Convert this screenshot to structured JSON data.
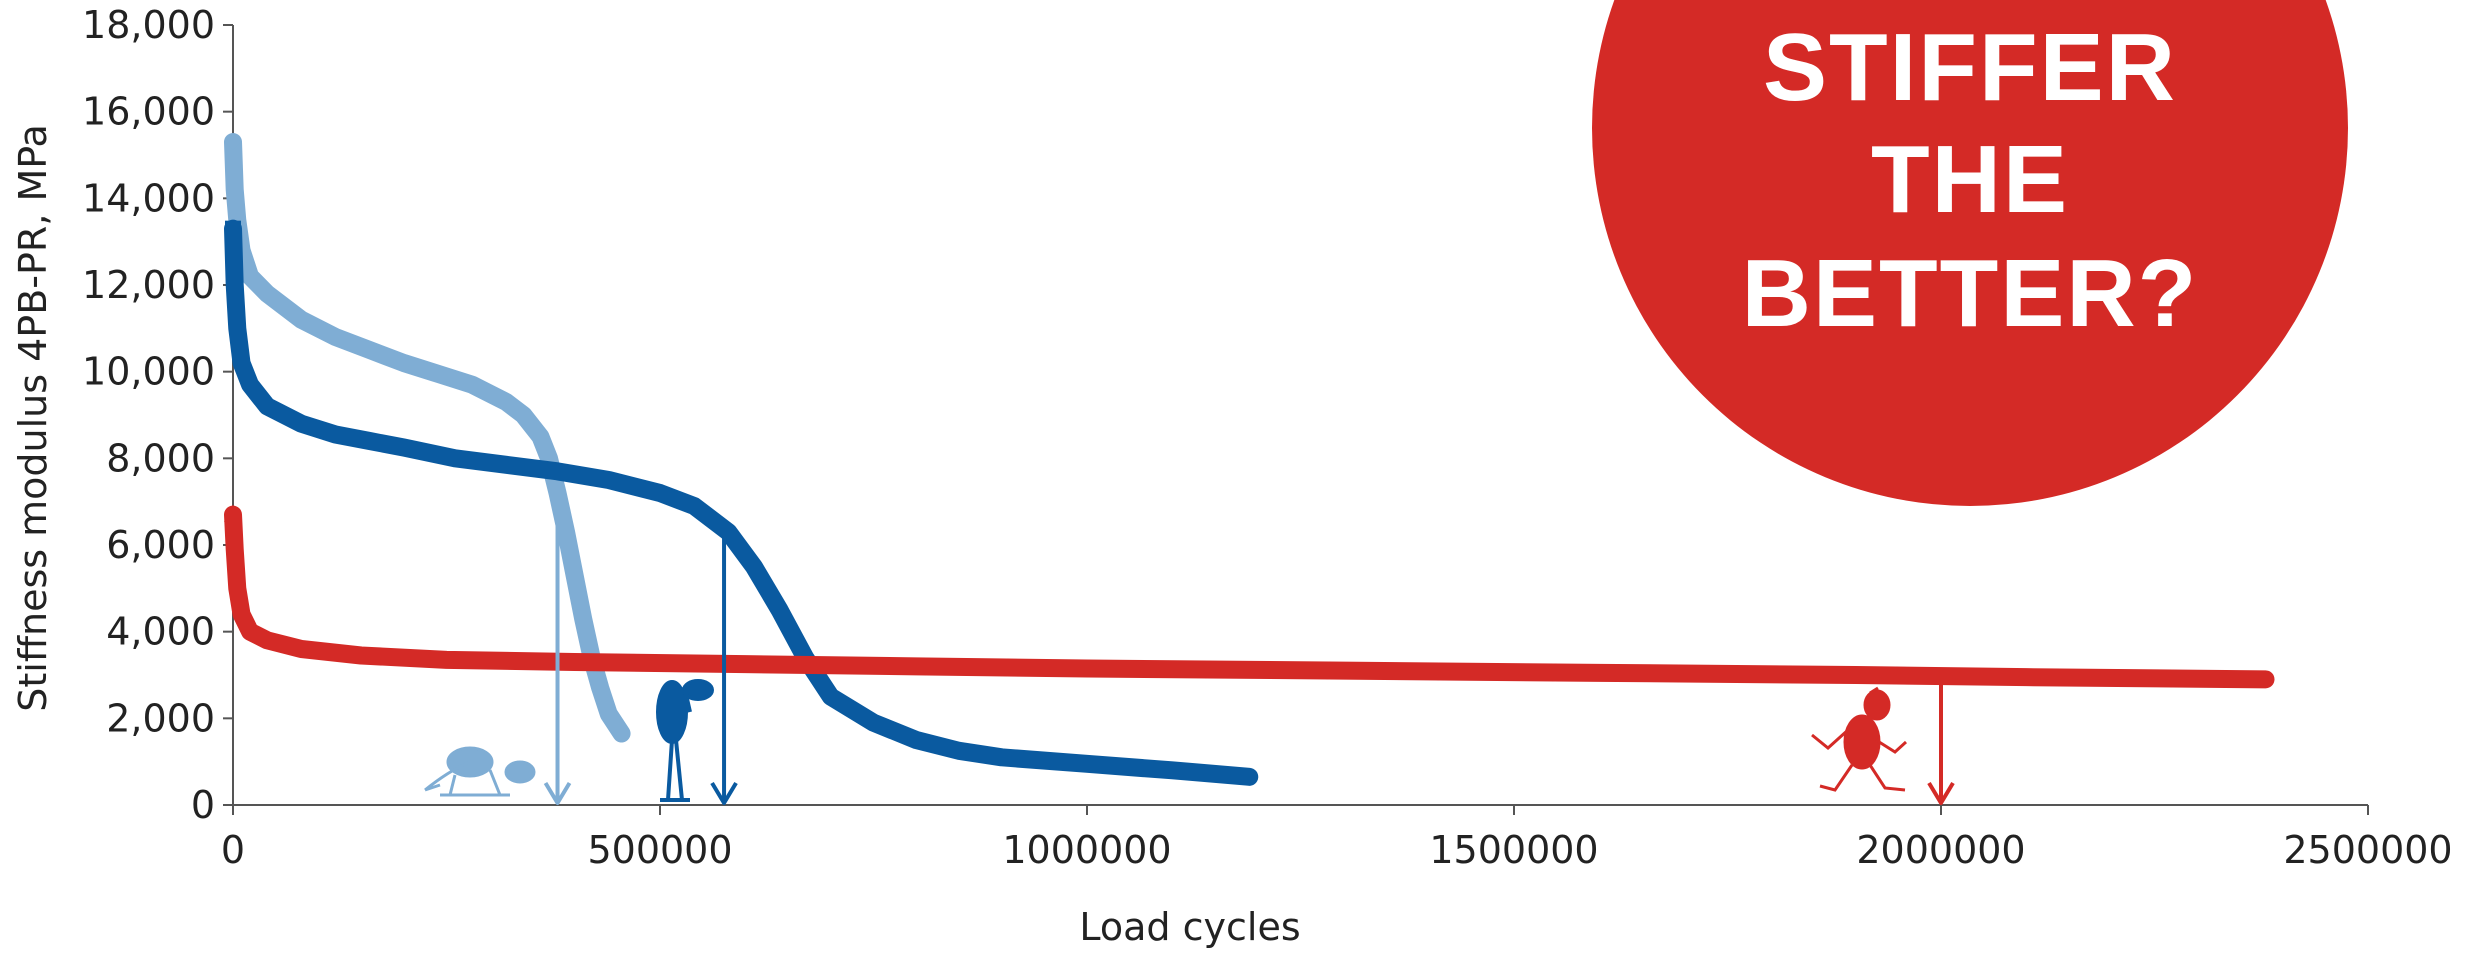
{
  "chart_data": {
    "type": "line",
    "xlabel": "Load cycles",
    "ylabel": "Stiffness modulus 4PB-PR, MPa",
    "xlim": [
      0,
      2500000
    ],
    "ylim": [
      0,
      18000
    ],
    "x_ticks": [
      "0",
      "500000",
      "1000000",
      "1500000",
      "2000000",
      "2500000"
    ],
    "y_ticks": [
      "0",
      "2,000",
      "4,000",
      "6,000",
      "8,000",
      "10,000",
      "12,000",
      "14,000",
      "16,000",
      "18,000"
    ],
    "grid": false,
    "series": [
      {
        "color": "#7fadd4",
        "marker": "diamond",
        "x": [
          0,
          2000,
          5000,
          10000,
          20000,
          40000,
          80000,
          120000,
          160000,
          200000,
          240000,
          280000,
          320000,
          340000,
          360000,
          370000,
          380000,
          390000,
          400000,
          410000,
          420000,
          430000,
          440000,
          455000
        ],
        "y": [
          15300,
          14200,
          13500,
          12800,
          12200,
          11800,
          11200,
          10800,
          10500,
          10200,
          9950,
          9700,
          9300,
          9000,
          8500,
          8000,
          7200,
          6300,
          5300,
          4300,
          3400,
          2700,
          2100,
          1650
        ],
        "end_marker_x": 380000
      },
      {
        "color": "#0a5aa0",
        "marker": "square",
        "x": [
          0,
          2000,
          5000,
          10000,
          20000,
          40000,
          80000,
          120000,
          160000,
          200000,
          260000,
          320000,
          380000,
          440000,
          500000,
          540000,
          580000,
          610000,
          640000,
          670000,
          700000,
          750000,
          800000,
          850000,
          900000,
          1000000,
          1100000,
          1190000
        ],
        "y": [
          13300,
          12000,
          11000,
          10200,
          9700,
          9200,
          8800,
          8550,
          8400,
          8250,
          8000,
          7850,
          7700,
          7500,
          7200,
          6900,
          6300,
          5500,
          4500,
          3400,
          2500,
          1900,
          1500,
          1250,
          1100,
          950,
          800,
          650
        ],
        "end_marker_x": 575000
      },
      {
        "color": "#d42a26",
        "marker": "triangle",
        "x": [
          0,
          2000,
          5000,
          10000,
          20000,
          40000,
          80000,
          150000,
          250000,
          400000,
          600000,
          800000,
          1000000,
          1300000,
          1600000,
          1900000,
          2100000,
          2380000
        ],
        "y": [
          6700,
          5900,
          5000,
          4400,
          4000,
          3800,
          3600,
          3450,
          3350,
          3300,
          3250,
          3200,
          3150,
          3100,
          3050,
          3000,
          2950,
          2900
        ],
        "end_marker_x": 2000000
      }
    ],
    "annotation": {
      "lines": [
        "STIFFER",
        "THE",
        "BETTER?"
      ],
      "background_color": "#d42a26",
      "text_color": "#ffffff"
    }
  }
}
